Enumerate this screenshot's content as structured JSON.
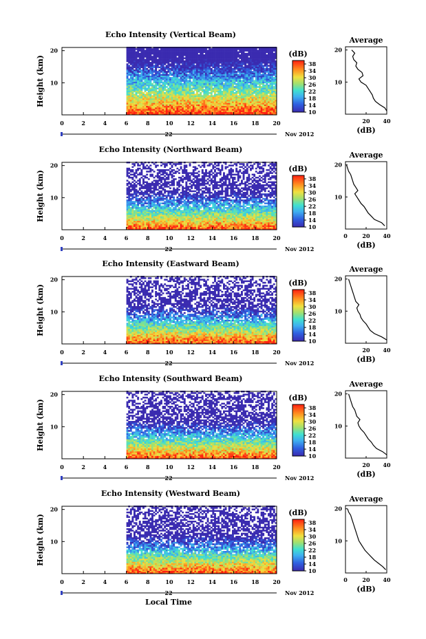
{
  "figure": {
    "xlabel": "Local Time",
    "date_label": "Nov 2012",
    "day_label": "22",
    "colorbar_unit": "(dB)",
    "avg_title": "Average",
    "avg_xlabel": "(dB)",
    "ylabel": "Height (km)"
  },
  "chart_data": [
    {
      "type": "heatmap",
      "title": "Echo Intensity (Vertical Beam)",
      "xlabel": "",
      "ylabel": "Height (km)",
      "x_ticks": [
        0,
        2,
        4,
        6,
        8,
        10,
        12,
        14,
        16,
        18,
        20
      ],
      "y_ticks": [
        10,
        20
      ],
      "xlim": [
        0,
        20
      ],
      "ylim": [
        0,
        21
      ],
      "data_start_hour": 6,
      "colorbar": {
        "label": "(dB)",
        "ticks": [
          10,
          14,
          18,
          22,
          26,
          30,
          34,
          38
        ],
        "range": [
          10,
          40
        ]
      },
      "profile": {
        "title": "Average",
        "xlabel": "(dB)",
        "x_ticks": [
          20,
          40
        ],
        "xlim": [
          0,
          40
        ],
        "heights": [
          1,
          2,
          3,
          4,
          5,
          6,
          7,
          8,
          9,
          10,
          11,
          12,
          13,
          14,
          15,
          16,
          17,
          18,
          19,
          20
        ],
        "values": [
          40,
          38,
          33,
          29,
          27,
          26,
          24,
          22,
          20,
          15,
          13,
          17,
          16,
          12,
          10,
          11,
          8,
          7,
          9,
          6
        ]
      }
    },
    {
      "type": "heatmap",
      "title": "Echo Intensity (Northward Beam)",
      "xlabel": "",
      "ylabel": "Height (km)",
      "x_ticks": [
        0,
        2,
        4,
        6,
        8,
        10,
        12,
        14,
        16,
        18,
        20
      ],
      "y_ticks": [
        10,
        20
      ],
      "xlim": [
        0,
        20
      ],
      "ylim": [
        0,
        21
      ],
      "data_start_hour": 6,
      "colorbar": {
        "label": "(dB)",
        "ticks": [
          10,
          14,
          18,
          22,
          26,
          30,
          34,
          38
        ],
        "range": [
          10,
          40
        ]
      },
      "profile": {
        "title": "Average",
        "xlabel": "(dB)",
        "x_ticks": [
          0,
          20,
          40
        ],
        "xlim": [
          0,
          40
        ],
        "heights": [
          1,
          2,
          3,
          4,
          5,
          6,
          7,
          8,
          9,
          10,
          11,
          12,
          13,
          14,
          15,
          16,
          17,
          18,
          19,
          20
        ],
        "values": [
          38,
          35,
          28,
          25,
          22,
          20,
          18,
          15,
          13,
          11,
          9,
          12,
          10,
          8,
          7,
          6,
          5,
          3,
          2,
          1
        ]
      }
    },
    {
      "type": "heatmap",
      "title": "Echo Intensity (Eastward Beam)",
      "xlabel": "",
      "ylabel": "Height (km)",
      "x_ticks": [
        0,
        2,
        4,
        6,
        8,
        10,
        12,
        14,
        16,
        18,
        20
      ],
      "y_ticks": [
        10,
        20
      ],
      "xlim": [
        0,
        20
      ],
      "ylim": [
        0,
        21
      ],
      "data_start_hour": 6,
      "colorbar": {
        "label": "(dB)",
        "ticks": [
          10,
          14,
          18,
          22,
          26,
          30,
          34,
          38
        ],
        "range": [
          10,
          40
        ]
      },
      "profile": {
        "title": "Average",
        "xlabel": "(dB)",
        "x_ticks": [
          20,
          40
        ],
        "xlim": [
          0,
          40
        ],
        "heights": [
          1,
          2,
          3,
          4,
          5,
          6,
          7,
          8,
          9,
          10,
          11,
          12,
          13,
          14,
          15,
          16,
          17,
          18,
          19,
          20
        ],
        "values": [
          40,
          35,
          28,
          24,
          22,
          20,
          17,
          15,
          14,
          12,
          11,
          13,
          10,
          9,
          8,
          7,
          6,
          5,
          4,
          3
        ]
      }
    },
    {
      "type": "heatmap",
      "title": "Echo Intensity (Southward Beam)",
      "xlabel": "",
      "ylabel": "Height (km)",
      "x_ticks": [
        0,
        2,
        4,
        6,
        8,
        10,
        12,
        14,
        16,
        18,
        20
      ],
      "y_ticks": [
        10,
        20
      ],
      "xlim": [
        0,
        20
      ],
      "ylim": [
        0,
        21
      ],
      "data_start_hour": 6,
      "colorbar": {
        "label": "(dB)",
        "ticks": [
          10,
          14,
          18,
          22,
          26,
          30,
          34,
          38
        ],
        "range": [
          10,
          40
        ]
      },
      "profile": {
        "title": "Average",
        "xlabel": "(dB)",
        "x_ticks": [
          20,
          40
        ],
        "xlim": [
          0,
          40
        ],
        "heights": [
          1,
          2,
          3,
          4,
          5,
          6,
          7,
          8,
          9,
          10,
          11,
          12,
          13,
          14,
          15,
          16,
          17,
          18,
          19,
          20
        ],
        "values": [
          40,
          36,
          30,
          27,
          25,
          22,
          20,
          18,
          15,
          13,
          12,
          14,
          11,
          10,
          9,
          7,
          6,
          5,
          4,
          3
        ]
      }
    },
    {
      "type": "heatmap",
      "title": "Echo Intensity (Westward Beam)",
      "xlabel": "Local Time",
      "ylabel": "Height (km)",
      "x_ticks": [
        0,
        2,
        4,
        6,
        8,
        10,
        12,
        14,
        16,
        18,
        20
      ],
      "y_ticks": [
        10,
        20
      ],
      "xlim": [
        0,
        20
      ],
      "ylim": [
        0,
        21
      ],
      "data_start_hour": 6,
      "colorbar": {
        "label": "(dB)",
        "ticks": [
          10,
          14,
          18,
          22,
          26,
          30,
          34,
          38
        ],
        "range": [
          10,
          40
        ]
      },
      "profile": {
        "title": "Average",
        "xlabel": "(dB)",
        "x_ticks": [
          0,
          20,
          40
        ],
        "xlim": [
          0,
          40
        ],
        "heights": [
          1,
          2,
          3,
          4,
          5,
          6,
          7,
          8,
          9,
          10,
          11,
          12,
          13,
          14,
          15,
          16,
          17,
          18,
          19,
          20
        ],
        "values": [
          39,
          36,
          32,
          28,
          25,
          22,
          19,
          17,
          15,
          13,
          12,
          11,
          10,
          9,
          8,
          7,
          6,
          5,
          3,
          2
        ]
      }
    }
  ]
}
